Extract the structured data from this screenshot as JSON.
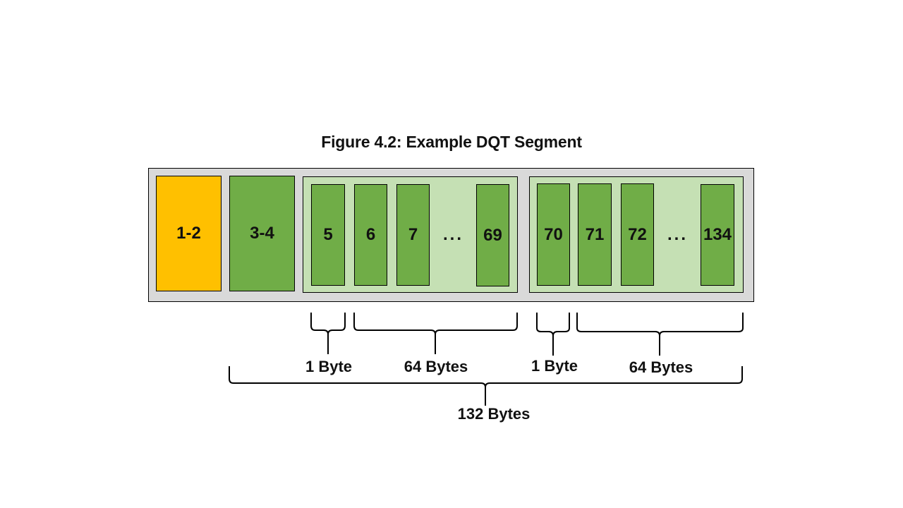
{
  "title": "Figure 4.2: Example DQT Segment",
  "colors": {
    "marker_box": "#ffc000",
    "byte_box": "#70ad47",
    "table_group": "#c5e0b4",
    "segment_background": "#d9d9d9"
  },
  "segment": {
    "marker": "1-2",
    "length": "3-4",
    "table1": {
      "info": "5",
      "values": [
        "6",
        "7"
      ],
      "ellipsis": "...",
      "last": "69"
    },
    "table2": {
      "info": "70",
      "values": [
        "71",
        "72"
      ],
      "ellipsis": "...",
      "last": "134"
    }
  },
  "annotations": {
    "t1_info": "1 Byte",
    "t1_values": "64 Bytes",
    "t2_info": "1 Byte",
    "t2_values": "64 Bytes",
    "total": "132 Bytes"
  }
}
